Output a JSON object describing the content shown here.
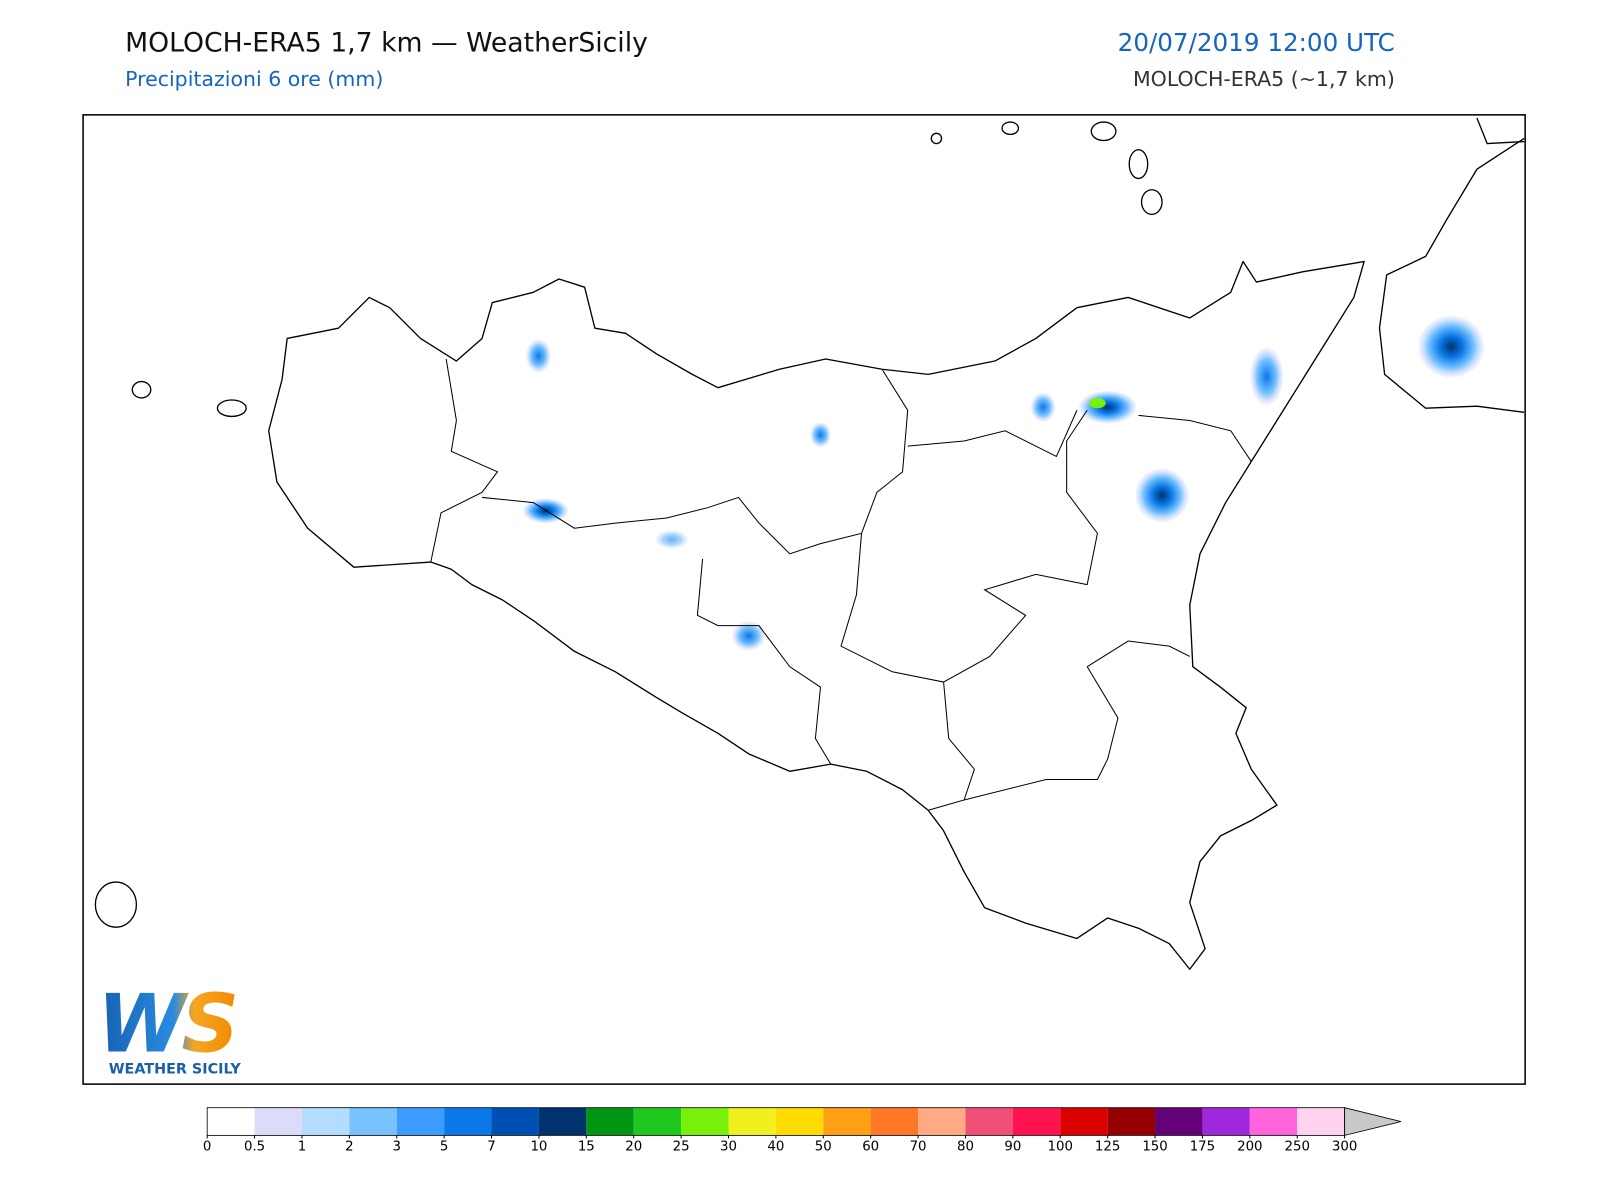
{
  "header": {
    "title": "MOLOCH-ERA5 1,7 km — WeatherSicily",
    "subtitle": "Precipitazioni 6 ore (mm)",
    "datetime": "20/07/2019 12:00 UTC",
    "model": "MOLOCH-ERA5 (~1,7 km)"
  },
  "logo": {
    "mark": "WS",
    "name": "WEATHER SICILY"
  },
  "colorbar": {
    "ticks": [
      0,
      0.5,
      1,
      2,
      3,
      5,
      7,
      10,
      15,
      20,
      25,
      30,
      40,
      50,
      60,
      70,
      80,
      90,
      100,
      125,
      150,
      175,
      200,
      250,
      300
    ],
    "colors": [
      "#ffffff",
      "#dcdcfa",
      "#b4dcff",
      "#78c3ff",
      "#3c9bff",
      "#0a78e6",
      "#0050b4",
      "#00326e",
      "#009614",
      "#1ec81e",
      "#78f00a",
      "#f0f01e",
      "#ffdc00",
      "#ffa014",
      "#ff7828",
      "#ffaa82",
      "#f05078",
      "#ff1450",
      "#dc0000",
      "#960000",
      "#640078",
      "#a028dc",
      "#ff64dc",
      "#ffd2f0"
    ],
    "extend_color": "#c8c8c8"
  }
}
